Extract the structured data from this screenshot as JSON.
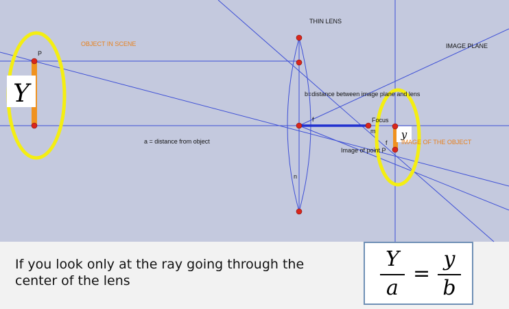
{
  "diagram": {
    "labels": {
      "thin_lens": "THIN LENS",
      "object_in_scene": "OBJECT IN SCENE",
      "image_plane": "IMAGE PLANE",
      "point_p": "P",
      "b_label": "b=distance between image plane and lens",
      "focus": "Focus",
      "f_label": "f",
      "m_label": "m",
      "a_label": "a = distance from object",
      "image_of_object": "IMAGE OF THE OBJECT",
      "image_of_point_p": "Image of point P",
      "n_label": "n",
      "small_f": "f"
    },
    "object_symbol": "Y",
    "image_symbol": "y",
    "colors": {
      "background": "#c4c9de",
      "ray": "#3d4fd6",
      "point": "#d9261c",
      "object_bar": "#f0921f",
      "highlight": "#f4ee12",
      "focal_segment": "#1f2fcf"
    }
  },
  "caption": "If you look only at the ray going through the center of the lens",
  "formula": {
    "lhs_num": "Y",
    "lhs_den": "a",
    "equals": "=",
    "rhs_num": "y",
    "rhs_den": "b"
  }
}
